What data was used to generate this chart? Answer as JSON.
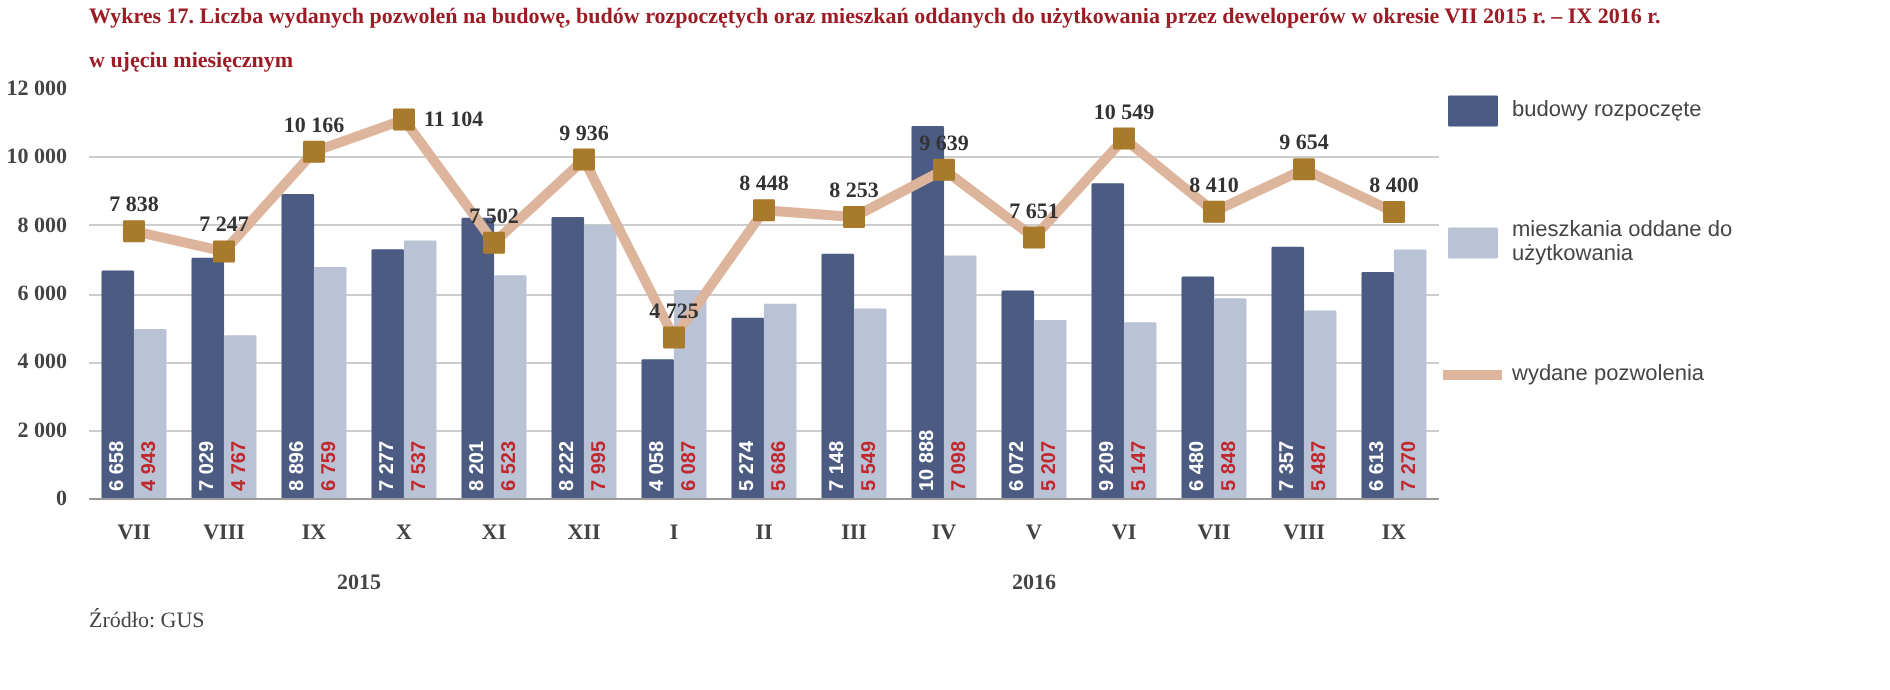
{
  "chart_data": {
    "type": "bar",
    "title": "Wykres 17. Liczba wydanych pozwoleń na budowę, budów rozpoczętych oraz mieszkań oddanych do użytkowania przez deweloperów w okresie VII 2015 r. – IX 2016 r.",
    "subtitle": "w ujęciu miesięcznym",
    "categories": [
      "VII",
      "VIII",
      "IX",
      "X",
      "XI",
      "XII",
      "I",
      "II",
      "III",
      "IV",
      "V",
      "VI",
      "VII",
      "VIII",
      "IX"
    ],
    "series": [
      {
        "name": "budowy rozpoczęte",
        "color": "#4b5b82",
        "values": [
          6658,
          7029,
          8896,
          7277,
          8201,
          8222,
          4058,
          5274,
          7148,
          10888,
          6072,
          9209,
          6480,
          7357,
          6613
        ],
        "value_labels": [
          "6 658",
          "7 029",
          "8 896",
          "7 277",
          "8 201",
          "8 222",
          "4 058",
          "5 274",
          "7 148",
          "10 888",
          "6 072",
          "9 209",
          "6 480",
          "7 357",
          "6 613"
        ]
      },
      {
        "name": "mieszkania oddane do użytkowania",
        "color": "#bac3d6",
        "values": [
          4943,
          4767,
          6759,
          7537,
          6523,
          7995,
          6087,
          5686,
          5549,
          7098,
          5207,
          5147,
          5848,
          5487,
          7270
        ],
        "value_labels": [
          "4 943",
          "4 767",
          "6 759",
          "7 537",
          "6 523",
          "7 995",
          "6 087",
          "5 686",
          "5 549",
          "7 098",
          "5 207",
          "5 147",
          "5 848",
          "5 487",
          "7 270"
        ]
      },
      {
        "name": "wydane pozwolenia",
        "type": "line",
        "color": "#ddb59c",
        "marker": "square",
        "values": [
          7838,
          7247,
          10166,
          11104,
          7502,
          9936,
          4725,
          8448,
          8253,
          9639,
          7651,
          10549,
          8410,
          9654,
          8400
        ],
        "value_labels": [
          "7 838",
          "7 247",
          "10 166",
          "11 104",
          "7 502",
          "9 936",
          "4 725",
          "8 448",
          "8 253",
          "9 639",
          "7 651",
          "10 549",
          "8 410",
          "9 654",
          "8 400"
        ]
      }
    ],
    "ylim": [
      0,
      12000
    ],
    "yticks": [
      {
        "value": 0,
        "label": "0"
      },
      {
        "value": 2000,
        "label": "2 000"
      },
      {
        "value": 4000,
        "label": "4 000"
      },
      {
        "value": 6000,
        "label": "6 000"
      },
      {
        "value": 8000,
        "label": "8 000"
      },
      {
        "value": 10000,
        "label": "10 000"
      },
      {
        "value": 12000,
        "label": "12 000"
      }
    ],
    "grid": "y",
    "legend": "right",
    "annotations": [
      "2015",
      "2016",
      "Źródło: GUS"
    ]
  }
}
